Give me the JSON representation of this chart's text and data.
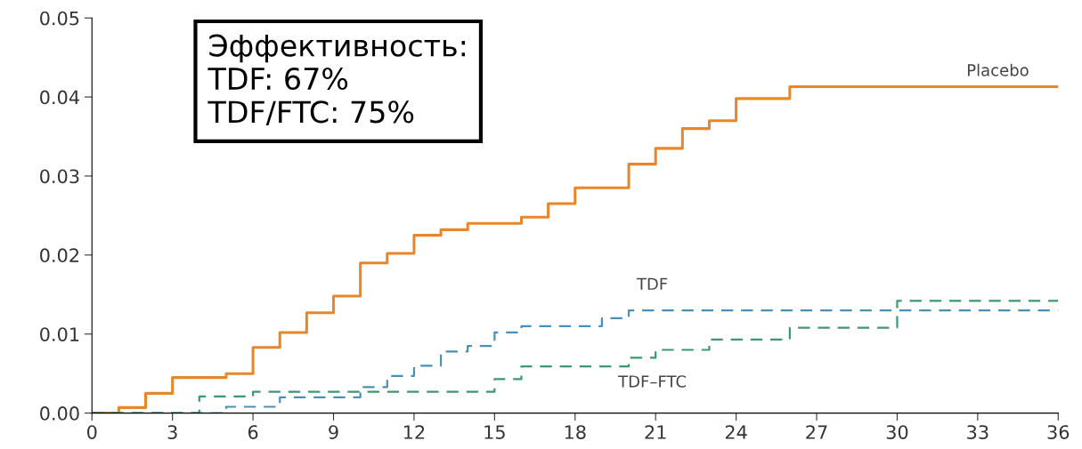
{
  "chart_data": {
    "type": "step",
    "xlim": [
      0,
      36
    ],
    "xticks": [
      0,
      3,
      6,
      9,
      12,
      15,
      18,
      21,
      24,
      27,
      30,
      33,
      36
    ],
    "ylim": [
      0,
      0.05
    ],
    "yticks": [
      {
        "value": 0,
        "label": "0.00"
      },
      {
        "value": 0.01,
        "label": "0.01"
      },
      {
        "value": 0.02,
        "label": "0.02"
      },
      {
        "value": 0.03,
        "label": "0.03"
      },
      {
        "value": 0.04,
        "label": "0.04"
      },
      {
        "value": 0.05,
        "label": "0.05"
      }
    ],
    "grid": false,
    "legend": false,
    "series": [
      {
        "name": "Placebo",
        "color": "#e8862a",
        "line_style": "solid",
        "x": [
          0,
          1,
          2,
          3,
          5,
          6,
          7,
          8,
          9,
          10,
          11,
          12,
          13,
          14,
          16,
          17,
          18,
          20,
          21,
          22,
          23,
          24,
          26,
          36
        ],
        "values": [
          0,
          0.0007,
          0.0025,
          0.0045,
          0.005,
          0.0083,
          0.0102,
          0.0127,
          0.0148,
          0.019,
          0.0202,
          0.0225,
          0.0232,
          0.024,
          0.0248,
          0.0265,
          0.0285,
          0.0315,
          0.0335,
          0.036,
          0.037,
          0.0398,
          0.0413,
          0.0413
        ]
      },
      {
        "name": "TDF",
        "color": "#4a8fb5",
        "line_style": "dashed",
        "x": [
          0,
          5,
          7,
          10,
          11,
          12,
          13,
          14,
          15,
          16,
          19,
          20,
          36
        ],
        "values": [
          0,
          0.0008,
          0.002,
          0.0033,
          0.0047,
          0.006,
          0.0078,
          0.0085,
          0.0102,
          0.011,
          0.012,
          0.013,
          0.013
        ]
      },
      {
        "name": "TDF–FTC",
        "color": "#3a9a6e",
        "line_style": "dashed",
        "x": [
          0,
          4,
          6,
          15,
          16,
          20,
          21,
          23,
          26,
          30,
          36
        ],
        "values": [
          0,
          0.0021,
          0.0027,
          0.0043,
          0.0059,
          0.007,
          0.008,
          0.0093,
          0.0108,
          0.0142,
          0.0142
        ]
      }
    ],
    "annotations": [
      "Эффективность:\nTDF: 67%\nTDF/FTC: 75%"
    ]
  }
}
